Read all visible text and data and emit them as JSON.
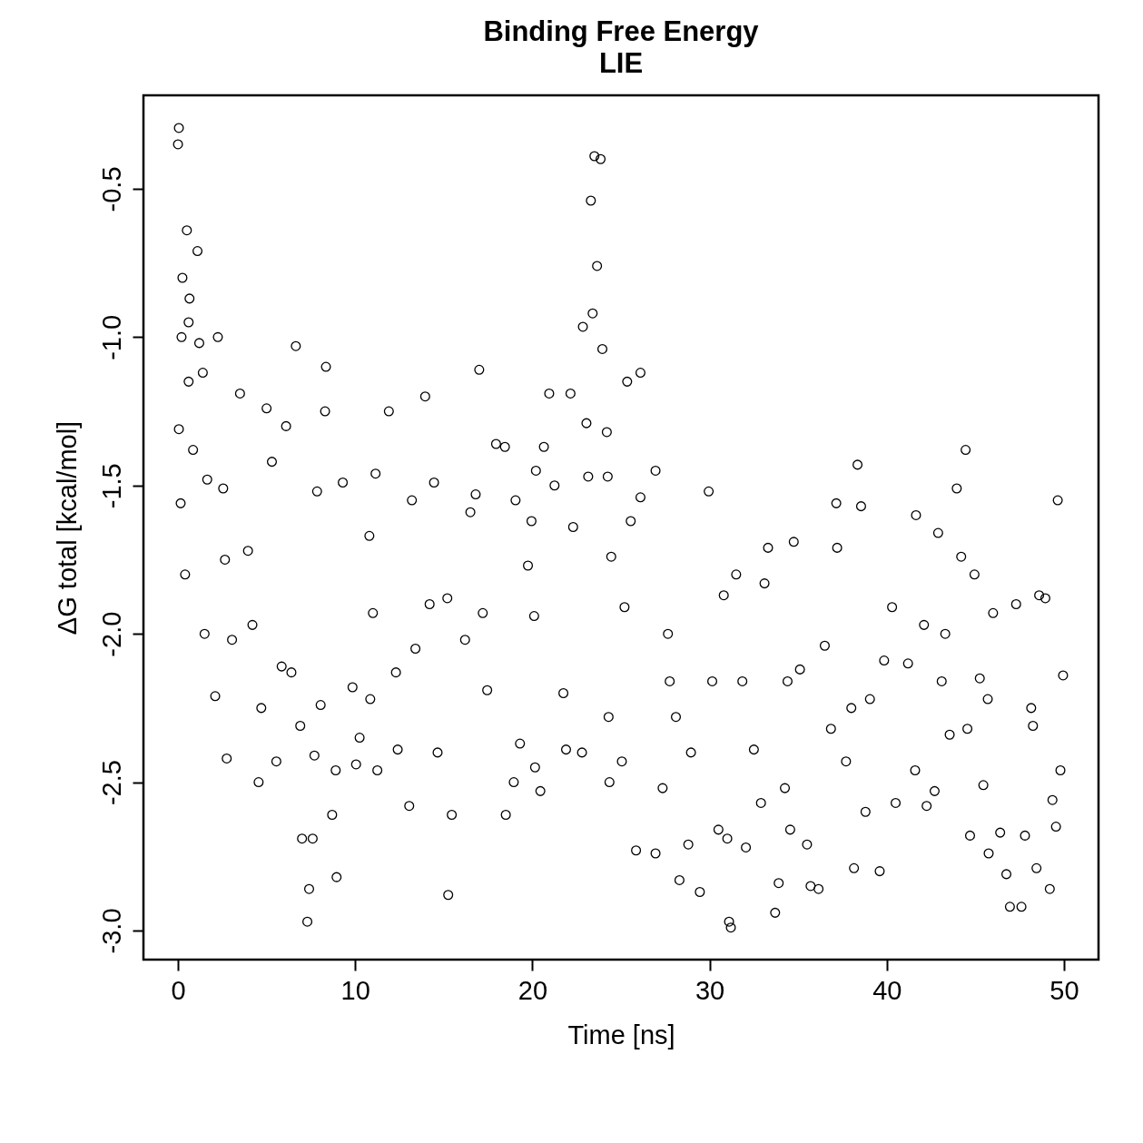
{
  "chart_data": {
    "type": "scatter",
    "title": "Binding Free Energy",
    "subtitle": "LIE",
    "xlabel": "Time [ns]",
    "ylabel": "ΔG total [kcal/mol]",
    "xlim": [
      -1.95,
      51.95
    ],
    "ylim": [
      -3.098,
      -0.185
    ],
    "xticks": [
      0,
      10,
      20,
      30,
      40,
      50
    ],
    "yticks": [
      {
        "value": -3,
        "label": "-3.0"
      },
      -2.5,
      {
        "value": -2,
        "label": "-2.0"
      },
      -1.5,
      {
        "value": -1,
        "label": "-1.0"
      },
      -0.5
    ],
    "grid": false,
    "legend": false,
    "marker": "circle",
    "series": [
      {
        "color": "#000000",
        "x": [
          0.05,
          0,
          0.25,
          0.5,
          1.1,
          0.65,
          0.6,
          0.2,
          1.2,
          2.25,
          1.4,
          0.6,
          0.05,
          0.85,
          0.15,
          0.4,
          1.65,
          2.55,
          3.5,
          1.5,
          2.1,
          2.75,
          3.05,
          3.95,
          4.7,
          4.55,
          5.0,
          5.3,
          5.55,
          5.85,
          6.1,
          6.65,
          6.4,
          6.9,
          7.0,
          7.3,
          7.4,
          7.6,
          7.7,
          7.85,
          8.05,
          8.35,
          8.3,
          8.7,
          8.95,
          8.9,
          9.3,
          9.85,
          10.05,
          10.25,
          10.8,
          11.0,
          11.25,
          11.15,
          11.9,
          12.3,
          12.4,
          13.05,
          13.2,
          13.95,
          14.2,
          14.45,
          14.65,
          15.25,
          15.45,
          15.2,
          16.2,
          16.5,
          16.8,
          17.0,
          17.45,
          17.95,
          18.45,
          18.5,
          18.95,
          19.05,
          19.3,
          19.75,
          19.95,
          20.15,
          20.2,
          20.45,
          20.65,
          20.95,
          21.25,
          21.75,
          21.9,
          22.15,
          22.3,
          22.8,
          22.85,
          23.05,
          23.15,
          23.3,
          23.4,
          23.5,
          23.65,
          23.85,
          23.95,
          24.2,
          24.25,
          24.3,
          24.35,
          24.45,
          25.05,
          25.35,
          25.55,
          25.85,
          26.1,
          26.1,
          26.95,
          26.95,
          27.35,
          27.65,
          28.1,
          28.3,
          28.8,
          28.95,
          29.45,
          29.95,
          30.15,
          30.5,
          30.8,
          31.0,
          31.1,
          31.2,
          31.5,
          32.05,
          32.5,
          32.9,
          33.1,
          33.3,
          33.7,
          33.9,
          34.25,
          34.55,
          34.75,
          35.1,
          35.5,
          35.7,
          36.15,
          36.5,
          36.85,
          37.15,
          37.2,
          37.7,
          38.15,
          38.35,
          38.55,
          38.8,
          39.05,
          39.6,
          39.85,
          40.3,
          40.5,
          41.2,
          41.6,
          41.65,
          42.1,
          42.25,
          42.7,
          42.9,
          43.3,
          43.55,
          43.95,
          44.2,
          44.45,
          44.55,
          44.7,
          44.95,
          45.25,
          45.45,
          45.75,
          46.0,
          46.4,
          46.75,
          46.95,
          47.3,
          47.6,
          47.8,
          48.15,
          48.45,
          48.6,
          48.95,
          49.2,
          49.35,
          49.55,
          49.65,
          49.8,
          49.95,
          2.65,
          4.2,
          10.85,
          13.4,
          17.2,
          20.1,
          25.2,
          27.75,
          31.85,
          34.4,
          38.0,
          43.1,
          45.7,
          48.25
        ],
        "values": [
          -0.295,
          -0.35,
          -0.8,
          -0.64,
          -0.71,
          -0.87,
          -0.95,
          -1.0,
          -1.02,
          -1.0,
          -1.12,
          -1.15,
          -1.31,
          -1.38,
          -1.56,
          -1.8,
          -1.48,
          -1.51,
          -1.19,
          -2.0,
          -2.21,
          -2.42,
          -2.02,
          -1.72,
          -2.25,
          -2.5,
          -1.24,
          -1.42,
          -2.43,
          -2.11,
          -1.3,
          -1.03,
          -2.13,
          -2.31,
          -2.69,
          -2.97,
          -2.86,
          -2.69,
          -2.41,
          -1.52,
          -2.24,
          -1.1,
          -1.25,
          -2.61,
          -2.82,
          -2.46,
          -1.49,
          -2.18,
          -2.44,
          -2.35,
          -1.67,
          -1.93,
          -2.46,
          -1.46,
          -1.25,
          -2.13,
          -2.39,
          -2.58,
          -1.55,
          -1.2,
          -1.9,
          -1.49,
          -2.4,
          -2.88,
          -2.61,
          -1.88,
          -2.02,
          -1.59,
          -1.53,
          -1.11,
          -2.19,
          -1.36,
          -1.37,
          -2.61,
          -2.5,
          -1.55,
          -2.37,
          -1.77,
          -1.62,
          -2.45,
          -1.45,
          -2.53,
          -1.37,
          -1.19,
          -1.5,
          -2.2,
          -2.39,
          -1.19,
          -1.64,
          -2.4,
          -0.965,
          -1.29,
          -1.47,
          -0.54,
          -0.92,
          -0.39,
          -0.76,
          -0.4,
          -1.04,
          -1.32,
          -1.47,
          -2.28,
          -2.5,
          -1.74,
          -2.43,
          -1.15,
          -1.62,
          -2.73,
          -1.12,
          -1.54,
          -1.45,
          -2.74,
          -2.52,
          -2.0,
          -2.28,
          -2.83,
          -2.71,
          -2.4,
          -2.87,
          -1.52,
          -2.16,
          -2.66,
          -1.87,
          -2.69,
          -2.97,
          -2.99,
          -1.8,
          -2.72,
          -2.39,
          -2.57,
          -1.83,
          -1.71,
          -2.94,
          -2.84,
          -2.52,
          -2.66,
          -1.69,
          -2.12,
          -2.71,
          -2.85,
          -2.86,
          -2.04,
          -2.32,
          -1.56,
          -1.71,
          -2.43,
          -2.79,
          -1.43,
          -1.57,
          -2.6,
          -2.22,
          -2.8,
          -2.09,
          -1.91,
          -2.57,
          -2.1,
          -2.46,
          -1.6,
          -1.97,
          -2.58,
          -2.53,
          -1.66,
          -2.0,
          -2.34,
          -1.51,
          -1.74,
          -1.38,
          -2.32,
          -2.68,
          -1.8,
          -2.15,
          -2.51,
          -2.74,
          -1.93,
          -2.67,
          -2.81,
          -2.92,
          -1.9,
          -2.92,
          -2.68,
          -2.25,
          -2.79,
          -1.87,
          -1.88,
          -2.86,
          -2.56,
          -2.65,
          -1.55,
          -2.46,
          -2.14,
          -1.75,
          -1.97,
          -2.22,
          -2.05,
          -1.93,
          -1.94,
          -1.91,
          -2.16,
          -2.16,
          -2.16,
          -2.25,
          -2.16,
          -2.22,
          -2.31
        ]
      }
    ]
  }
}
